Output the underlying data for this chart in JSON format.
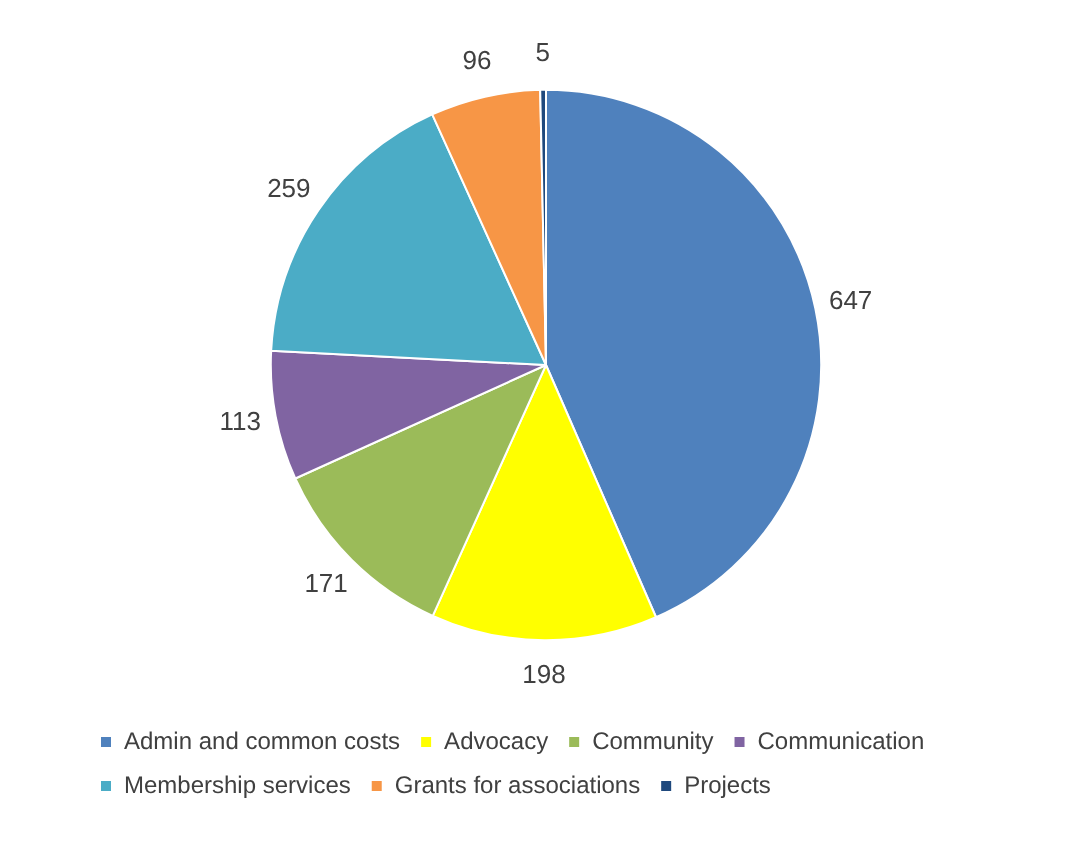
{
  "chart_data": {
    "type": "pie",
    "categories": [
      "Admin and common costs",
      "Advocacy",
      "Community",
      "Communication",
      "Membership services",
      "Grants for associations",
      "Projects"
    ],
    "values": [
      647,
      198,
      171,
      113,
      259,
      96,
      5
    ],
    "colors": [
      "#4f81bd",
      "#ffff00",
      "#9bbb59",
      "#8064a2",
      "#4bacc6",
      "#f79646",
      "#1f497d"
    ],
    "data_labels": true,
    "legend": "bottom"
  }
}
